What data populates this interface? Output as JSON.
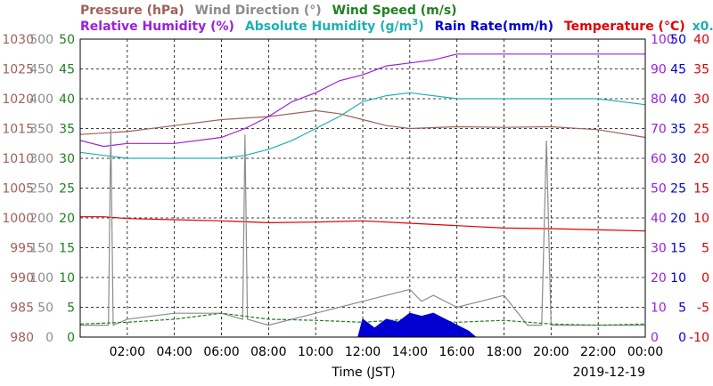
{
  "chart_data": {
    "type": "line",
    "date": "2019-12-19",
    "xlabel": "Time (JST)",
    "x_ticks": [
      "02:00",
      "04:00",
      "06:00",
      "08:00",
      "10:00",
      "12:00",
      "14:00",
      "16:00",
      "18:00",
      "20:00",
      "22:00",
      "00:00"
    ],
    "x_range_hours": [
      0,
      24
    ],
    "grid": true,
    "legend": {
      "row1": [
        {
          "text": "Pressure (hPa)",
          "color": "#a0605a"
        },
        {
          "text": "Wind Direction (°)",
          "color": "#8c8c8c"
        },
        {
          "text": "Wind Speed (m/s)",
          "color": "#208020"
        }
      ],
      "row2": [
        {
          "text": "Relative Humidity (%)",
          "color": "#9b20e0"
        },
        {
          "text": "Absolute Humidity (g/m",
          "sup": "3",
          "close": ")",
          "color": "#20b0b0"
        },
        {
          "text": "Rain Rate(mm/h)",
          "color": "#0000d0"
        },
        {
          "text": "Temperature (°C)",
          "color": "#e00000"
        },
        {
          "text": "x0.1",
          "color": "#20b0b0"
        }
      ]
    },
    "axes": {
      "pressure": {
        "color": "#a0605a",
        "ticks": [
          "1030",
          "1025",
          "1020",
          "1015",
          "1010",
          "1005",
          "1000",
          "995",
          "990",
          "985",
          "980"
        ],
        "range": [
          980,
          1030
        ]
      },
      "wind_direction": {
        "color": "#8c8c8c",
        "ticks": [
          "500",
          "450",
          "400",
          "350",
          "300",
          "250",
          "200",
          "150",
          "100",
          "50",
          "0"
        ],
        "range": [
          0,
          500
        ]
      },
      "wind_speed": {
        "color": "#208020",
        "ticks": [
          "50",
          "45",
          "40",
          "35",
          "30",
          "25",
          "20",
          "15",
          "10",
          "5",
          "0"
        ],
        "range": [
          0,
          50
        ]
      },
      "humidity": {
        "color": "#9b20e0",
        "ticks": [
          "100",
          "90",
          "80",
          "70",
          "60",
          "50",
          "40",
          "30",
          "20",
          "10",
          "0"
        ],
        "range": [
          0,
          100
        ]
      },
      "rain_rate": {
        "color": "#0000d0",
        "ticks": [
          "50",
          "45",
          "40",
          "35",
          "30",
          "25",
          "20",
          "15",
          "10",
          "5",
          "0"
        ],
        "range": [
          0,
          50
        ]
      },
      "temperature": {
        "color": "#e00000",
        "ticks": [
          "40",
          "35",
          "30",
          "25",
          "20",
          "15",
          "10",
          "5",
          "0",
          "-5",
          "-10"
        ],
        "range": [
          -10,
          40
        ]
      }
    },
    "series": [
      {
        "name": "Pressure (hPa)",
        "color": "#a0605a",
        "x": [
          0,
          2,
          4,
          6,
          8,
          10,
          11,
          12,
          13,
          14,
          16,
          18,
          20,
          22,
          24
        ],
        "y": [
          1014,
          1014.5,
          1015.5,
          1016.5,
          1017,
          1018,
          1017.5,
          1016.5,
          1015.5,
          1015,
          1015.3,
          1015.2,
          1015.3,
          1014.8,
          1013.5
        ]
      },
      {
        "name": "Relative Humidity (%)",
        "color": "#9b20e0",
        "x": [
          0,
          1,
          2,
          4,
          6,
          7,
          8,
          9,
          10,
          11,
          12,
          13,
          14,
          15,
          16,
          18,
          20,
          22,
          24
        ],
        "y": [
          66,
          64,
          65,
          65,
          67,
          70,
          74,
          79,
          82,
          86,
          88,
          91,
          92,
          93,
          95,
          95,
          95,
          95,
          95
        ]
      },
      {
        "name": "Absolute Humidity (g/m3) x0.1",
        "color": "#20b0b0",
        "x": [
          0,
          1,
          2,
          4,
          6,
          7,
          8,
          9,
          10,
          11,
          12,
          13,
          14,
          16,
          18,
          20,
          22,
          24
        ],
        "y": [
          62,
          61,
          60,
          60,
          60,
          61,
          63,
          66,
          70,
          74,
          79,
          81,
          82,
          80,
          80,
          80,
          80,
          78
        ]
      },
      {
        "name": "Temperature (°C)",
        "color": "#e00000",
        "x": [
          0,
          1,
          2,
          4,
          6,
          8,
          10,
          12,
          14,
          16,
          18,
          20,
          22,
          24
        ],
        "y": [
          10.2,
          10.2,
          9.9,
          9.7,
          9.5,
          9.2,
          9.3,
          9.5,
          9.1,
          8.7,
          8.3,
          8.2,
          8.0,
          7.8
        ]
      },
      {
        "name": "Wind Direction (°)",
        "color": "#8c8c8c",
        "x": [
          0,
          1.2,
          1.3,
          1.4,
          2,
          4,
          6,
          6.9,
          7,
          7.1,
          8,
          10,
          12,
          13,
          14,
          14.5,
          15,
          16,
          17,
          18,
          19,
          19.6,
          19.8,
          20,
          22,
          24
        ],
        "y": [
          20,
          20,
          350,
          20,
          30,
          40,
          40,
          30,
          340,
          30,
          20,
          40,
          60,
          70,
          80,
          60,
          70,
          50,
          60,
          70,
          20,
          20,
          330,
          20,
          20,
          20
        ]
      },
      {
        "name": "Wind Speed (m/s)",
        "color": "#208020",
        "x": [
          0,
          2,
          4,
          6,
          8,
          10,
          12,
          14,
          16,
          18,
          20,
          22,
          24
        ],
        "y": [
          2.2,
          2.5,
          3.0,
          4.0,
          3.0,
          2.8,
          2.5,
          3.0,
          2.5,
          2.8,
          2.2,
          2.0,
          2.2
        ]
      },
      {
        "name": "Rain Rate(mm/h)",
        "color": "#0000d0",
        "x": [
          11.8,
          12,
          12.5,
          13,
          13.5,
          14,
          14.5,
          15,
          15.5,
          16,
          16.5,
          16.8
        ],
        "y": [
          0,
          3,
          1.5,
          3,
          2.5,
          4,
          3.5,
          4,
          3,
          2,
          1,
          0
        ]
      }
    ]
  }
}
